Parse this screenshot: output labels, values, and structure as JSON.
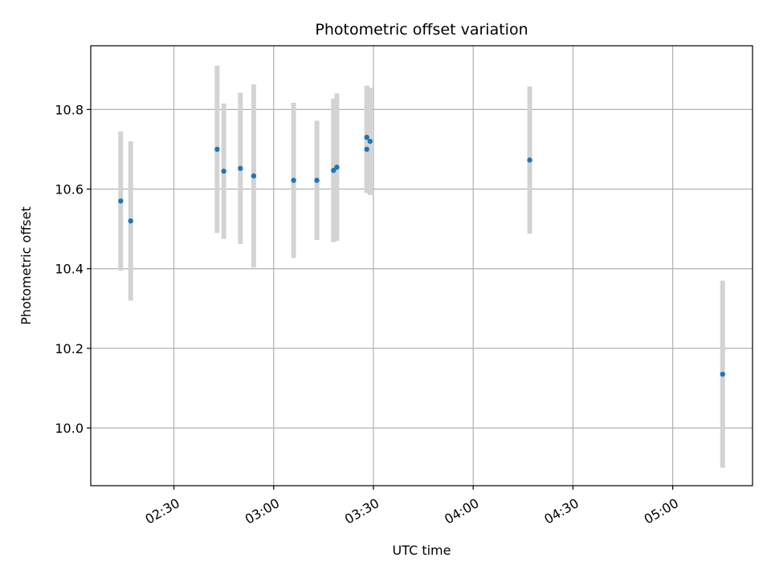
{
  "chart_data": {
    "type": "scatter",
    "title": "Photometric offset variation",
    "xlabel": "UTC time",
    "ylabel": "Photometric offset",
    "x_ticks": [
      "02:30",
      "03:00",
      "03:30",
      "04:00",
      "04:30",
      "05:00"
    ],
    "y_ticks": [
      "10.0",
      "10.2",
      "10.4",
      "10.6",
      "10.8"
    ],
    "xlim": [
      "02:05",
      "05:24"
    ],
    "ylim": [
      9.855,
      10.96
    ],
    "grid": true,
    "series": [
      {
        "marker_color": "#1f77b4",
        "errorbar_color": "#d3d3d3",
        "points": [
          {
            "x": "02:14",
            "y": 10.57,
            "err": 0.175
          },
          {
            "x": "02:17",
            "y": 10.52,
            "err": 0.2
          },
          {
            "x": "02:43",
            "y": 10.7,
            "err": 0.21
          },
          {
            "x": "02:45",
            "y": 10.645,
            "err": 0.17
          },
          {
            "x": "02:50",
            "y": 10.652,
            "err": 0.19
          },
          {
            "x": "02:54",
            "y": 10.633,
            "err": 0.23
          },
          {
            "x": "03:06",
            "y": 10.622,
            "err": 0.195
          },
          {
            "x": "03:13",
            "y": 10.622,
            "err": 0.15
          },
          {
            "x": "03:18",
            "y": 10.647,
            "err": 0.18
          },
          {
            "x": "03:19",
            "y": 10.655,
            "err": 0.185
          },
          {
            "x": "03:28",
            "y": 10.7,
            "err": 0.11
          },
          {
            "x": "03:28",
            "y": 10.73,
            "err": 0.13
          },
          {
            "x": "03:29",
            "y": 10.72,
            "err": 0.135
          },
          {
            "x": "04:17",
            "y": 10.673,
            "err": 0.185
          },
          {
            "x": "05:15",
            "y": 10.135,
            "err": 0.235
          }
        ]
      }
    ]
  }
}
